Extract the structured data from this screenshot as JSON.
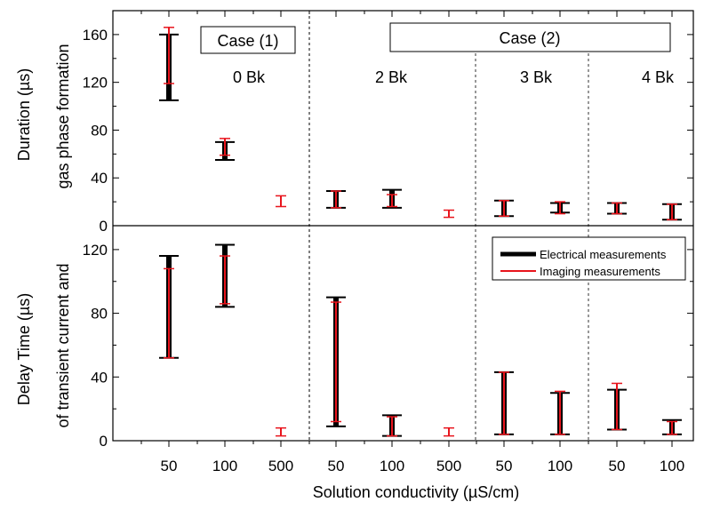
{
  "chart_data": {
    "type": "error-bar",
    "xlabel": "Solution conductivity (µS/cm)",
    "categories": [
      "50",
      "100",
      "500",
      "50",
      "100",
      "500",
      "50",
      "100",
      "50",
      "100"
    ],
    "colors": {
      "electrical": "#000000",
      "imaging": "#e8141c"
    },
    "group_labels": [
      "0 Bk",
      "2 Bk",
      "3 Bk",
      "4 Bk"
    ],
    "case_labels": [
      "Case (1)",
      "Case (2)"
    ],
    "legend": {
      "position": "top-right",
      "entries": [
        "Electrical measurements",
        "Imaging measurements"
      ]
    },
    "panels": [
      {
        "ylabel_line1": "Duration (µs)",
        "ylabel_line2": "gas phase formation",
        "ylim": [
          0,
          180
        ],
        "yticks": [
          "0",
          "40",
          "80",
          "120",
          "160"
        ],
        "yticks_values": [
          0,
          40,
          80,
          120,
          160
        ],
        "series": [
          {
            "name": "Electrical measurements",
            "ranges": [
              [
                105,
                160
              ],
              [
                55,
                70
              ],
              null,
              [
                15,
                29
              ],
              [
                15,
                30
              ],
              null,
              [
                8,
                21
              ],
              [
                11,
                19
              ],
              [
                10,
                19
              ],
              [
                5,
                18
              ]
            ]
          },
          {
            "name": "Imaging measurements",
            "ranges": [
              [
                119,
                166
              ],
              [
                59,
                73
              ],
              [
                16,
                25
              ],
              [
                15,
                29
              ],
              [
                16,
                26
              ],
              [
                7,
                13
              ],
              [
                8,
                21
              ],
              [
                10,
                20
              ],
              [
                10,
                19
              ],
              [
                5,
                18
              ]
            ]
          }
        ]
      },
      {
        "ylabel_line1": "Delay Time (µs)",
        "ylabel_line2": "of transient current and",
        "ylim": [
          0,
          135
        ],
        "yticks": [
          "0",
          "40",
          "80",
          "120"
        ],
        "yticks_values": [
          0,
          40,
          80,
          120
        ],
        "series": [
          {
            "name": "Electrical measurements",
            "ranges": [
              [
                52,
                116
              ],
              [
                84,
                123
              ],
              null,
              [
                9,
                90
              ],
              [
                3,
                16
              ],
              null,
              [
                4,
                43
              ],
              [
                4,
                30
              ],
              [
                7,
                32
              ],
              [
                4,
                13
              ]
            ]
          },
          {
            "name": "Imaging measurements",
            "ranges": [
              [
                52,
                108
              ],
              [
                86,
                116
              ],
              [
                3,
                8
              ],
              [
                12,
                87
              ],
              [
                3,
                15
              ],
              [
                3,
                8
              ],
              [
                4,
                43
              ],
              [
                4,
                31
              ],
              [
                7,
                36
              ],
              [
                4,
                12
              ]
            ]
          }
        ]
      }
    ]
  }
}
